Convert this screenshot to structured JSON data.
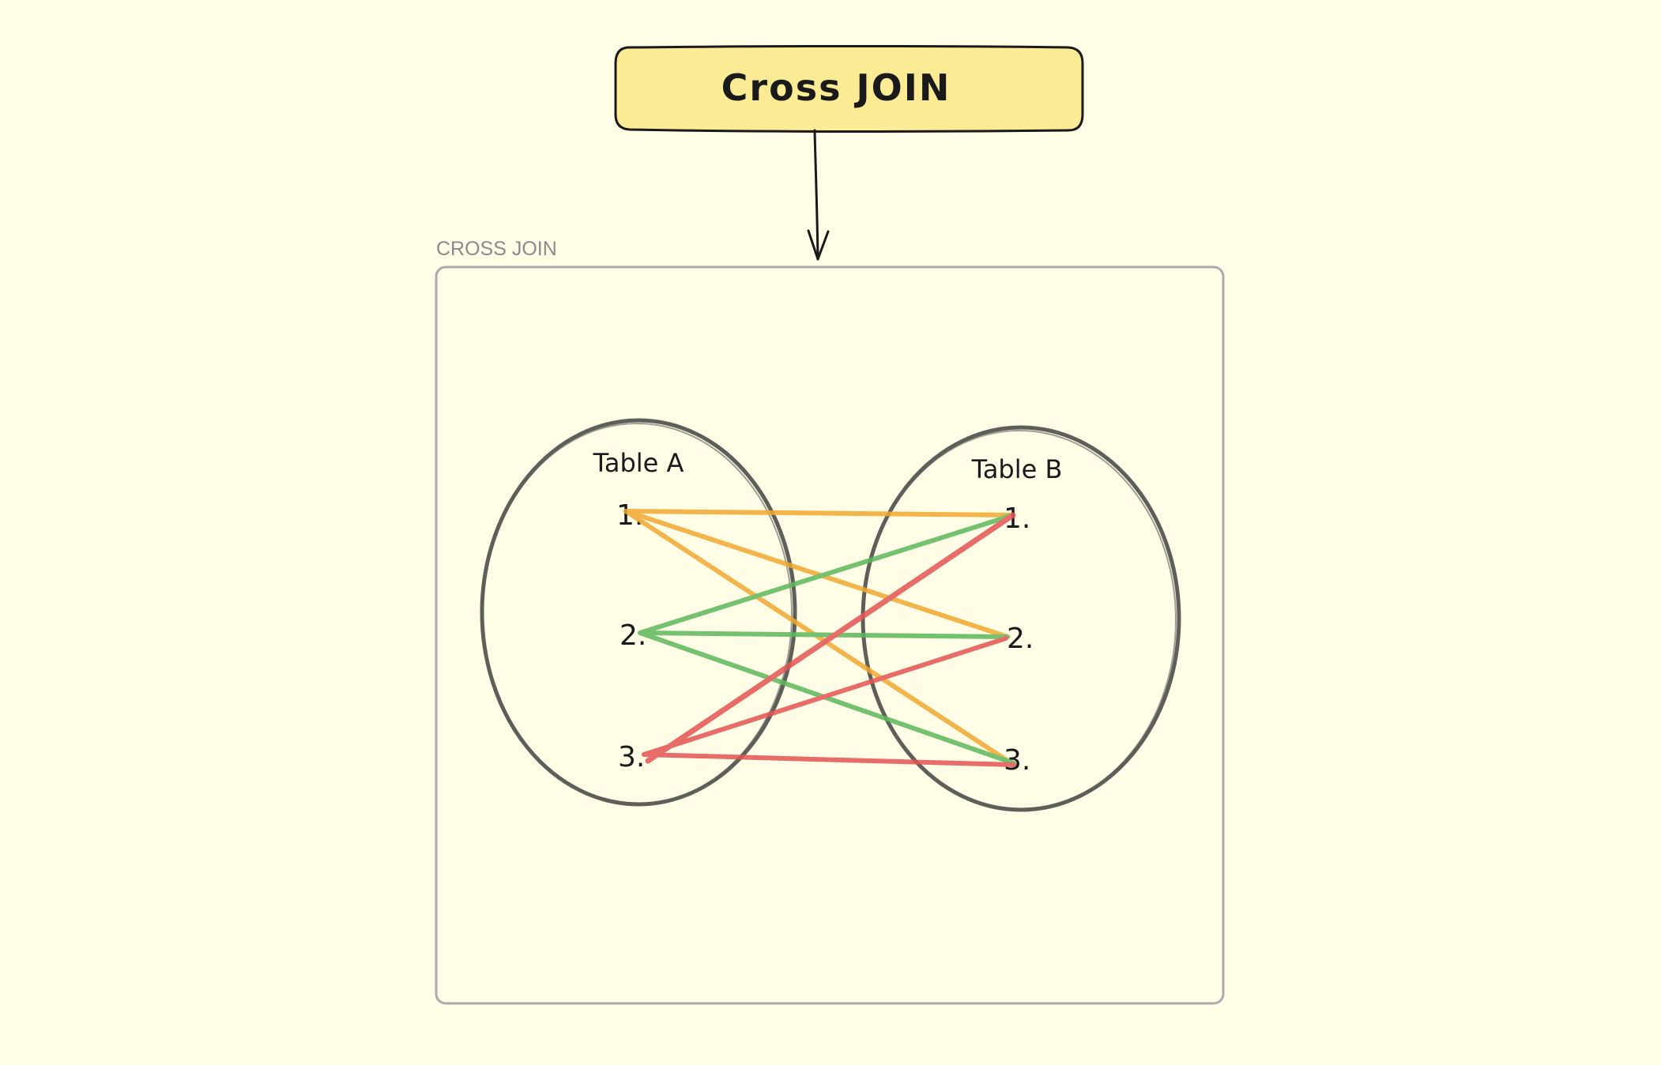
{
  "colors": {
    "background": "#fffde6",
    "title_box_fill": "#fbeb94",
    "stroke_dark": "#1a1a1a",
    "ellipse_stroke": "#5f5f5a",
    "frame_stroke": "#ababab",
    "frame_label": "#8a8a8a",
    "row1_lines": "#f0a830",
    "row2_lines": "#5cb85c",
    "row3_lines": "#e55454"
  },
  "title_box": {
    "text": "Cross JOIN"
  },
  "frame": {
    "label": "CROSS JOIN"
  },
  "table_a": {
    "label": "Table A",
    "rows": [
      "1.",
      "2.",
      "3."
    ]
  },
  "table_b": {
    "label": "Table B",
    "rows": [
      "1.",
      "2.",
      "3."
    ]
  }
}
